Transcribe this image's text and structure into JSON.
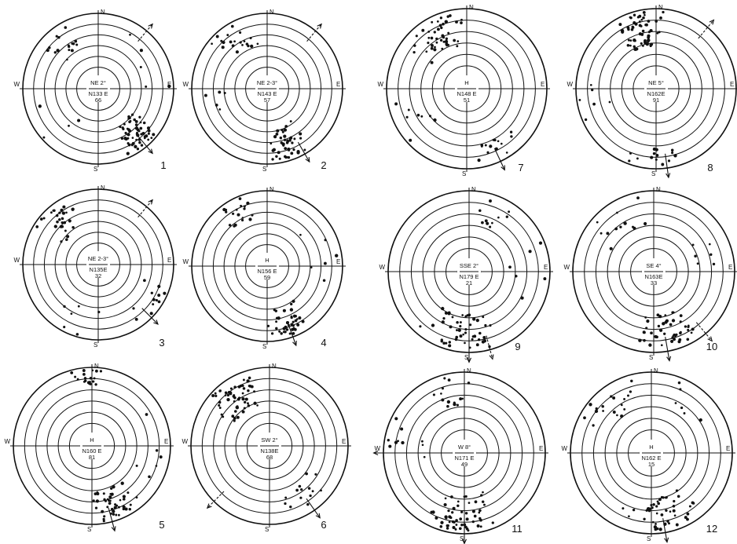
{
  "cardinal": {
    "n": "N",
    "s": "S",
    "e": "E",
    "w": "W"
  },
  "plots": [
    {
      "number": "1",
      "tilt": "NE 2°",
      "strike": "N133 E",
      "count": "66"
    },
    {
      "number": "2",
      "tilt": "NE 2-3°",
      "strike": "N143 E",
      "count": "57"
    },
    {
      "number": "3",
      "tilt": "NE 2-3°",
      "strike": "N135E",
      "count": "32"
    },
    {
      "number": "4",
      "tilt": "H",
      "strike": "N156 E",
      "count": "59"
    },
    {
      "number": "5",
      "tilt": "H",
      "strike": "N160 E",
      "count": "81"
    },
    {
      "number": "6",
      "tilt": "SW 2°",
      "strike": "N138E",
      "count": "68"
    },
    {
      "number": "7",
      "tilt": "H",
      "strike": "N148 E",
      "count": "51"
    },
    {
      "number": "8",
      "tilt": "NE 5°",
      "strike": "N162E",
      "count": "91"
    },
    {
      "number": "9",
      "tilt": "SSE 2°",
      "strike": "N179 E",
      "count": "21"
    },
    {
      "number": "10",
      "tilt": "SE 4°",
      "strike": "N163E",
      "count": "33"
    },
    {
      "number": "11",
      "tilt": "W 8°",
      "strike": "N171 E",
      "count": "49"
    },
    {
      "number": "12",
      "tilt": "H",
      "strike": "N162 E",
      "count": "15"
    }
  ]
}
